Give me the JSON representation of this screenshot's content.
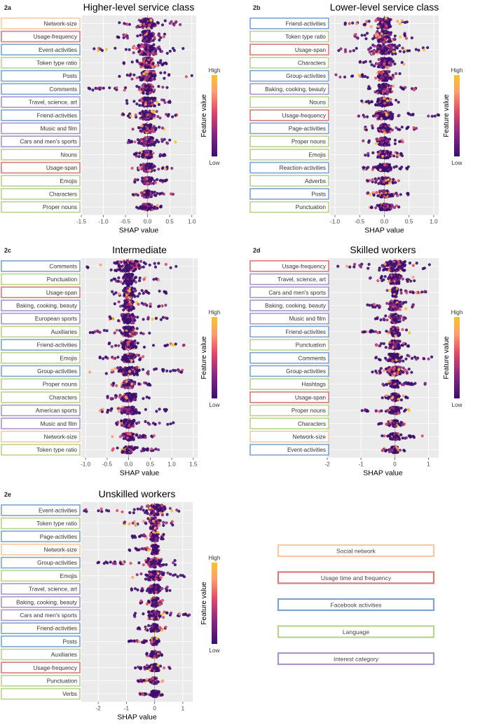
{
  "category_colors": {
    "social": "#f8c9a4",
    "usage": "#d9797b",
    "activities": "#7fa3d0",
    "language": "#b9d38e",
    "interest": "#a796c9"
  },
  "legend": [
    {
      "cat": "social",
      "label": "Social network"
    },
    {
      "cat": "usage",
      "label": "Usage time and frequency"
    },
    {
      "cat": "activities",
      "label": "Facebook activities"
    },
    {
      "cat": "language",
      "label": "Language"
    },
    {
      "cat": "interest",
      "label": "Interest category"
    }
  ],
  "colorbar": {
    "title": "Feature value",
    "high": "High",
    "low": "Low",
    "colors": [
      "#3b0f6f",
      "#8c2981",
      "#de4968",
      "#fe9f6d",
      "#f5c525"
    ]
  },
  "chart_data": [
    {
      "id": "2a",
      "type": "scatter",
      "title": "Higher-level service class",
      "xlabel": "SHAP value",
      "xlim": [
        -1.5,
        1.1
      ],
      "xticks": [
        -1.5,
        -1.0,
        -0.5,
        0.0,
        0.5,
        1.0
      ],
      "xtick_labels": [
        "-1.5",
        "-1.0",
        "-0.5",
        "0.0",
        "0.5",
        "1.0"
      ],
      "features": [
        {
          "name": "Network-size",
          "cat": "social",
          "range": [
            -0.65,
            0.75
          ],
          "width": 0.8
        },
        {
          "name": "Usage-frequency",
          "cat": "usage",
          "range": [
            -0.7,
            0.45
          ],
          "width": 0.95
        },
        {
          "name": "Event-activities",
          "cat": "activities",
          "range": [
            -1.3,
            0.85
          ],
          "width": 0.9
        },
        {
          "name": "Token type ratio",
          "cat": "language",
          "range": [
            -0.65,
            0.45
          ],
          "width": 0.85
        },
        {
          "name": "Posts",
          "cat": "activities",
          "range": [
            -0.7,
            1.1
          ],
          "width": 0.8
        },
        {
          "name": "Comments",
          "cat": "activities",
          "range": [
            -1.45,
            0.45
          ],
          "width": 0.8
        },
        {
          "name": "Travel, science, art",
          "cat": "interest",
          "range": [
            -0.5,
            0.55
          ],
          "width": 0.75
        },
        {
          "name": "Friend-activities",
          "cat": "activities",
          "range": [
            -0.6,
            0.7
          ],
          "width": 0.75
        },
        {
          "name": "Music and film",
          "cat": "interest",
          "range": [
            -0.35,
            0.4
          ],
          "width": 0.75
        },
        {
          "name": "Cars and men's sports",
          "cat": "interest",
          "range": [
            -0.55,
            0.65
          ],
          "width": 0.7
        },
        {
          "name": "Nouns",
          "cat": "language",
          "range": [
            -0.35,
            0.4
          ],
          "width": 0.6
        },
        {
          "name": "Usage-span",
          "cat": "usage",
          "range": [
            -0.4,
            0.55
          ],
          "width": 0.65
        },
        {
          "name": "Emojis",
          "cat": "language",
          "range": [
            -0.3,
            0.45
          ],
          "width": 0.55
        },
        {
          "name": "Characters",
          "cat": "language",
          "range": [
            -0.35,
            0.6
          ],
          "width": 0.55
        },
        {
          "name": "Proper nouns",
          "cat": "language",
          "range": [
            -0.3,
            0.35
          ],
          "width": 0.5
        }
      ]
    },
    {
      "id": "2b",
      "type": "scatter",
      "title": "Lower-level service class",
      "xlabel": "SHAP value",
      "xlim": [
        -1.1,
        1.1
      ],
      "xticks": [
        -1.0,
        -0.5,
        0.0,
        0.5,
        1.0
      ],
      "xtick_labels": [
        "-1.0",
        "-0.5",
        "0.0",
        "0.5",
        "1.0"
      ],
      "features": [
        {
          "name": "Friend-activities",
          "cat": "activities",
          "range": [
            -0.8,
            0.5
          ],
          "width": 0.9
        },
        {
          "name": "Token type ratio",
          "cat": "language",
          "range": [
            -0.6,
            0.6
          ],
          "width": 0.95
        },
        {
          "name": "Usage-span",
          "cat": "usage",
          "range": [
            -1.0,
            1.0
          ],
          "width": 0.85
        },
        {
          "name": "Characters",
          "cat": "language",
          "range": [
            -0.5,
            0.4
          ],
          "width": 0.8
        },
        {
          "name": "Group-activities",
          "cat": "activities",
          "range": [
            -1.0,
            0.4
          ],
          "width": 0.8
        },
        {
          "name": "Baking, cooking, beauty",
          "cat": "interest",
          "range": [
            -0.4,
            0.65
          ],
          "width": 0.85
        },
        {
          "name": "Nouns",
          "cat": "language",
          "range": [
            -0.5,
            0.3
          ],
          "width": 0.7
        },
        {
          "name": "Usage-frequency",
          "cat": "usage",
          "range": [
            -0.6,
            1.1
          ],
          "width": 0.7
        },
        {
          "name": "Page-activities",
          "cat": "activities",
          "range": [
            -0.4,
            0.75
          ],
          "width": 0.7
        },
        {
          "name": "Proper nouns",
          "cat": "language",
          "range": [
            -0.45,
            0.4
          ],
          "width": 0.65
        },
        {
          "name": "Emojis",
          "cat": "language",
          "range": [
            -0.4,
            0.4
          ],
          "width": 0.6
        },
        {
          "name": "Reaction-activities",
          "cat": "activities",
          "range": [
            -0.45,
            0.55
          ],
          "width": 0.6
        },
        {
          "name": "Adverbs",
          "cat": "language",
          "range": [
            -0.35,
            0.3
          ],
          "width": 0.55
        },
        {
          "name": "Posts",
          "cat": "activities",
          "range": [
            -0.35,
            0.5
          ],
          "width": 0.55
        },
        {
          "name": "Punctuation",
          "cat": "language",
          "range": [
            -0.3,
            0.3
          ],
          "width": 0.5
        }
      ]
    },
    {
      "id": "2c",
      "type": "scatter",
      "title": "Intermediate",
      "xlabel": "SHAP value",
      "xlim": [
        -1.1,
        1.6
      ],
      "xticks": [
        -1.0,
        -0.5,
        0.0,
        0.5,
        1.0,
        1.5
      ],
      "xtick_labels": [
        "-1.0",
        "-0.5",
        "0.0",
        "0.5",
        "1.0",
        "1.5"
      ],
      "features": [
        {
          "name": "Comments",
          "cat": "activities",
          "range": [
            -1.0,
            1.15
          ],
          "width": 0.9
        },
        {
          "name": "Punctuation",
          "cat": "language",
          "range": [
            -0.4,
            0.8
          ],
          "width": 0.9
        },
        {
          "name": "Usage-span",
          "cat": "usage",
          "range": [
            -0.4,
            0.9
          ],
          "width": 0.95
        },
        {
          "name": "Baking, cooking, beauty",
          "cat": "interest",
          "range": [
            -0.4,
            0.9
          ],
          "width": 0.9
        },
        {
          "name": "European sports",
          "cat": "interest",
          "range": [
            -0.5,
            0.9
          ],
          "width": 0.8
        },
        {
          "name": "Auxiliaries",
          "cat": "language",
          "range": [
            -0.9,
            0.5
          ],
          "width": 0.8
        },
        {
          "name": "Friend-activities",
          "cat": "activities",
          "range": [
            -0.5,
            1.4
          ],
          "width": 0.75
        },
        {
          "name": "Emojis",
          "cat": "language",
          "range": [
            -0.7,
            0.4
          ],
          "width": 0.7
        },
        {
          "name": "Group-activities",
          "cat": "activities",
          "range": [
            -1.0,
            1.45
          ],
          "width": 0.7
        },
        {
          "name": "Proper nouns",
          "cat": "language",
          "range": [
            -0.4,
            0.5
          ],
          "width": 0.65
        },
        {
          "name": "Characters",
          "cat": "language",
          "range": [
            -0.5,
            0.5
          ],
          "width": 0.65
        },
        {
          "name": "American sports",
          "cat": "interest",
          "range": [
            -0.7,
            0.9
          ],
          "width": 0.6
        },
        {
          "name": "Music and film",
          "cat": "interest",
          "range": [
            -0.5,
            1.2
          ],
          "width": 0.65
        },
        {
          "name": "Network-size",
          "cat": "social",
          "range": [
            -0.4,
            0.6
          ],
          "width": 0.6
        },
        {
          "name": "Token type ratio",
          "cat": "language",
          "range": [
            -0.4,
            0.7
          ],
          "width": 0.55
        }
      ]
    },
    {
      "id": "2d",
      "type": "scatter",
      "title": "Skilled workers",
      "xlabel": "SHAP value",
      "xlim": [
        -2.0,
        1.3
      ],
      "xticks": [
        -2,
        -1,
        0,
        1
      ],
      "xtick_labels": [
        "-2",
        "-1",
        "0",
        "1"
      ],
      "features": [
        {
          "name": "Usage-frequency",
          "cat": "usage",
          "range": [
            -1.95,
            1.15
          ],
          "width": 0.85
        },
        {
          "name": "Travel, science, art",
          "cat": "interest",
          "range": [
            -0.8,
            0.6
          ],
          "width": 0.8
        },
        {
          "name": "Cars and men's sports",
          "cat": "interest",
          "range": [
            -0.3,
            0.95
          ],
          "width": 0.75
        },
        {
          "name": "Baking, cooking, beauty",
          "cat": "interest",
          "range": [
            -1.0,
            0.6
          ],
          "width": 0.8
        },
        {
          "name": "Music and film",
          "cat": "interest",
          "range": [
            -0.6,
            0.45
          ],
          "width": 0.75
        },
        {
          "name": "Friend-activities",
          "cat": "activities",
          "range": [
            -1.0,
            0.45
          ],
          "width": 0.75
        },
        {
          "name": "Punctuation",
          "cat": "language",
          "range": [
            -0.6,
            0.45
          ],
          "width": 0.7
        },
        {
          "name": "Comments",
          "cat": "activities",
          "range": [
            -0.6,
            1.1
          ],
          "width": 0.7
        },
        {
          "name": "Group-activities",
          "cat": "activities",
          "range": [
            -0.7,
            0.65
          ],
          "width": 0.7
        },
        {
          "name": "Hashtags",
          "cat": "language",
          "range": [
            -0.4,
            0.95
          ],
          "width": 0.6
        },
        {
          "name": "Usage-span",
          "cat": "usage",
          "range": [
            -0.4,
            0.4
          ],
          "width": 0.6
        },
        {
          "name": "Proper nouns",
          "cat": "language",
          "range": [
            -1.0,
            0.45
          ],
          "width": 0.55
        },
        {
          "name": "Characters",
          "cat": "language",
          "range": [
            -0.5,
            0.3
          ],
          "width": 0.5
        },
        {
          "name": "Network-size",
          "cat": "social",
          "range": [
            -0.4,
            0.85
          ],
          "width": 0.55
        },
        {
          "name": "Event-activities",
          "cat": "activities",
          "range": [
            -0.45,
            0.3
          ],
          "width": 0.5
        }
      ]
    },
    {
      "id": "2e",
      "type": "scatter",
      "title": "Unskilled workers",
      "xlabel": "SHAP value",
      "xlim": [
        -2.6,
        1.35
      ],
      "xticks": [
        -2,
        -1,
        0,
        1
      ],
      "xtick_labels": [
        "-2",
        "-1",
        "0",
        "1"
      ],
      "features": [
        {
          "name": "Event-activities",
          "cat": "activities",
          "range": [
            -2.5,
            1.1
          ],
          "width": 0.9
        },
        {
          "name": "Token type ratio",
          "cat": "language",
          "range": [
            -1.1,
            0.65
          ],
          "width": 0.95
        },
        {
          "name": "Page-activities",
          "cat": "activities",
          "range": [
            -0.8,
            0.4
          ],
          "width": 0.85
        },
        {
          "name": "Network-size",
          "cat": "social",
          "range": [
            -0.9,
            0.35
          ],
          "width": 0.8
        },
        {
          "name": "Group-activities",
          "cat": "activities",
          "range": [
            -2.1,
            0.9
          ],
          "width": 0.75
        },
        {
          "name": "Emojis",
          "cat": "language",
          "range": [
            -0.8,
            1.1
          ],
          "width": 0.75
        },
        {
          "name": "Travel, science, art",
          "cat": "interest",
          "range": [
            -0.85,
            0.6
          ],
          "width": 0.7
        },
        {
          "name": "Baking, cooking, beauty",
          "cat": "interest",
          "range": [
            -0.5,
            0.35
          ],
          "width": 0.75
        },
        {
          "name": "Cars and men's sports",
          "cat": "interest",
          "range": [
            -0.8,
            1.25
          ],
          "width": 0.7
        },
        {
          "name": "Friend-activities",
          "cat": "activities",
          "range": [
            -0.6,
            0.4
          ],
          "width": 0.65
        },
        {
          "name": "Posts",
          "cat": "activities",
          "range": [
            -1.0,
            0.35
          ],
          "width": 0.6
        },
        {
          "name": "Auxiliaries",
          "cat": "language",
          "range": [
            -0.3,
            0.3
          ],
          "width": 0.55
        },
        {
          "name": "Usage-frequency",
          "cat": "usage",
          "range": [
            -0.7,
            0.55
          ],
          "width": 0.55
        },
        {
          "name": "Punctuation",
          "cat": "language",
          "range": [
            -0.6,
            0.3
          ],
          "width": 0.5
        },
        {
          "name": "Verbs",
          "cat": "language",
          "range": [
            -0.55,
            0.3
          ],
          "width": 0.5
        }
      ]
    }
  ]
}
